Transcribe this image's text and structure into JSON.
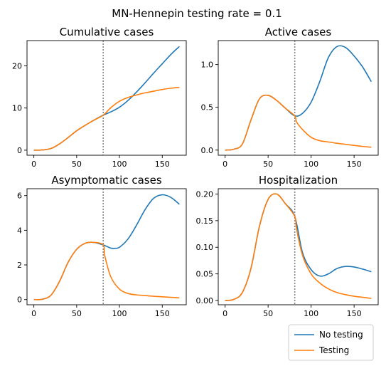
{
  "figure": {
    "suptitle": "MN-Hennepin testing rate = 0.1"
  },
  "colors": {
    "no_testing": "#1f77b4",
    "testing": "#ff7f0e",
    "marker_line": "#808080",
    "axis": "#000000"
  },
  "legend": {
    "placement": "bottom-right",
    "entries": [
      {
        "name": "No testing",
        "color": "#1f77b4"
      },
      {
        "name": "Testing",
        "color": "#ff7f0e"
      }
    ]
  },
  "chart_data": [
    {
      "type": "line",
      "title": "Cumulative cases",
      "xlim": [
        -8,
        178
      ],
      "ylim": [
        -1.2,
        26
      ],
      "xticks": [
        0,
        50,
        100,
        150
      ],
      "yticks": [
        0,
        10,
        20
      ],
      "ytick_labels": [
        "0",
        "10",
        "20"
      ],
      "vline_x": 81,
      "series": [
        {
          "name": "No testing",
          "x": [
            0,
            10,
            20,
            30,
            40,
            50,
            60,
            70,
            81,
            90,
            100,
            110,
            120,
            130,
            140,
            150,
            160,
            170
          ],
          "y": [
            0,
            0.05,
            0.4,
            1.5,
            3.0,
            4.6,
            5.9,
            7.1,
            8.3,
            9.1,
            10.2,
            11.8,
            13.8,
            16.0,
            18.3,
            20.5,
            22.7,
            24.6
          ]
        },
        {
          "name": "Testing",
          "x": [
            0,
            10,
            20,
            30,
            40,
            50,
            60,
            70,
            81,
            90,
            100,
            110,
            120,
            130,
            140,
            150,
            160,
            170
          ],
          "y": [
            0,
            0.05,
            0.4,
            1.5,
            3.0,
            4.6,
            5.9,
            7.1,
            8.3,
            10.1,
            11.6,
            12.5,
            13.1,
            13.6,
            14.0,
            14.4,
            14.7,
            14.9
          ]
        }
      ]
    },
    {
      "type": "line",
      "title": "Active cases",
      "xlim": [
        -8,
        178
      ],
      "ylim": [
        -0.06,
        1.28
      ],
      "xticks": [
        0,
        50,
        100,
        150
      ],
      "yticks": [
        0,
        0.5,
        1.0
      ],
      "ytick_labels": [
        "0.0",
        "0.5",
        "1.0"
      ],
      "vline_x": 81,
      "series": [
        {
          "name": "No testing",
          "x": [
            0,
            10,
            20,
            30,
            40,
            50,
            60,
            70,
            81,
            90,
            100,
            110,
            120,
            130,
            140,
            150,
            160,
            170
          ],
          "y": [
            0,
            0.01,
            0.07,
            0.35,
            0.6,
            0.64,
            0.58,
            0.49,
            0.4,
            0.43,
            0.56,
            0.8,
            1.08,
            1.21,
            1.2,
            1.1,
            0.97,
            0.8
          ]
        },
        {
          "name": "Testing",
          "x": [
            0,
            10,
            20,
            30,
            40,
            50,
            60,
            70,
            81,
            83,
            90,
            100,
            110,
            120,
            130,
            140,
            150,
            160,
            170
          ],
          "y": [
            0,
            0.01,
            0.07,
            0.35,
            0.6,
            0.64,
            0.58,
            0.49,
            0.4,
            0.33,
            0.24,
            0.15,
            0.11,
            0.095,
            0.08,
            0.068,
            0.055,
            0.043,
            0.033
          ]
        }
      ]
    },
    {
      "type": "line",
      "title": "Asymptomatic cases",
      "xlim": [
        -8,
        178
      ],
      "ylim": [
        -0.3,
        6.4
      ],
      "xticks": [
        0,
        50,
        100,
        150
      ],
      "yticks": [
        0,
        2,
        4,
        6
      ],
      "ytick_labels": [
        "0",
        "2",
        "4",
        "6"
      ],
      "vline_x": 81,
      "series": [
        {
          "name": "No testing",
          "x": [
            0,
            10,
            20,
            30,
            40,
            50,
            60,
            70,
            81,
            90,
            95,
            100,
            110,
            120,
            130,
            140,
            150,
            160,
            170
          ],
          "y": [
            0,
            0.02,
            0.25,
            1.05,
            2.15,
            2.9,
            3.25,
            3.3,
            3.15,
            2.97,
            2.96,
            3.02,
            3.5,
            4.3,
            5.2,
            5.85,
            6.05,
            5.9,
            5.5
          ]
        },
        {
          "name": "Testing",
          "x": [
            0,
            10,
            20,
            30,
            40,
            50,
            60,
            70,
            81,
            83,
            90,
            100,
            110,
            120,
            130,
            140,
            150,
            160,
            170
          ],
          "y": [
            0,
            0.02,
            0.25,
            1.05,
            2.15,
            2.9,
            3.25,
            3.3,
            3.15,
            2.5,
            1.3,
            0.6,
            0.35,
            0.27,
            0.23,
            0.19,
            0.16,
            0.13,
            0.1
          ]
        }
      ]
    },
    {
      "type": "line",
      "title": "Hospitalization",
      "xlim": [
        -8,
        178
      ],
      "ylim": [
        -0.008,
        0.21
      ],
      "xticks": [
        0,
        50,
        100,
        150
      ],
      "yticks": [
        0,
        0.05,
        0.1,
        0.15,
        0.2
      ],
      "ytick_labels": [
        "0.00",
        "0.05",
        "0.10",
        "0.15",
        "0.20"
      ],
      "vline_x": 81,
      "series": [
        {
          "name": "No testing",
          "x": [
            0,
            10,
            20,
            30,
            40,
            50,
            60,
            70,
            81,
            90,
            100,
            110,
            120,
            130,
            140,
            150,
            160,
            170
          ],
          "y": [
            0,
            0.002,
            0.015,
            0.06,
            0.14,
            0.19,
            0.2,
            0.182,
            0.158,
            0.09,
            0.058,
            0.046,
            0.05,
            0.06,
            0.064,
            0.063,
            0.059,
            0.054
          ]
        },
        {
          "name": "Testing",
          "x": [
            0,
            10,
            20,
            30,
            40,
            50,
            60,
            70,
            81,
            83,
            90,
            100,
            110,
            120,
            130,
            140,
            150,
            160,
            170
          ],
          "y": [
            0,
            0.002,
            0.015,
            0.06,
            0.14,
            0.19,
            0.2,
            0.182,
            0.158,
            0.135,
            0.085,
            0.05,
            0.033,
            0.022,
            0.015,
            0.011,
            0.008,
            0.006,
            0.004
          ]
        }
      ]
    }
  ]
}
